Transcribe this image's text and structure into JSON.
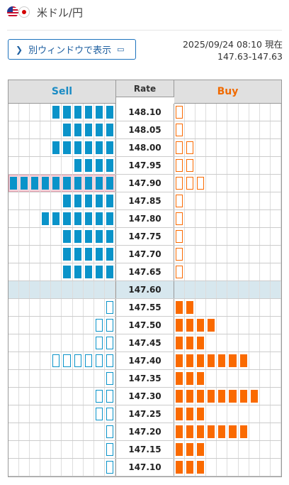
{
  "header": {
    "pair_label": "米ドル/円",
    "base_flag": "us-flag-icon",
    "quote_flag": "jp-flag-icon"
  },
  "window_button": {
    "label": "別ウィンドウで表示"
  },
  "timestamp": "2025/09/24 08:10 現在",
  "bid_ask": "147.63-147.63",
  "table": {
    "headers": {
      "sell": "Sell",
      "rate": "Rate",
      "buy": "Buy"
    },
    "colors": {
      "sell": "#0a93c9",
      "buy": "#fa6a00",
      "mid_row": "#d7e7ee",
      "highlight": "#f6d5dd"
    },
    "rows": [
      {
        "rate": "148.10",
        "sell": 6,
        "sell_style": "filled",
        "buy": 1,
        "buy_style": "outline"
      },
      {
        "rate": "148.05",
        "sell": 5,
        "sell_style": "filled",
        "buy": 1,
        "buy_style": "outline"
      },
      {
        "rate": "148.00",
        "sell": 6,
        "sell_style": "filled",
        "buy": 2,
        "buy_style": "outline"
      },
      {
        "rate": "147.95",
        "sell": 4,
        "sell_style": "filled",
        "buy": 2,
        "buy_style": "outline"
      },
      {
        "rate": "147.90",
        "sell": 10,
        "sell_style": "filled",
        "buy": 3,
        "buy_style": "outline",
        "highlight": true
      },
      {
        "rate": "147.85",
        "sell": 5,
        "sell_style": "filled",
        "buy": 1,
        "buy_style": "outline"
      },
      {
        "rate": "147.80",
        "sell": 7,
        "sell_style": "filled",
        "buy": 1,
        "buy_style": "outline"
      },
      {
        "rate": "147.75",
        "sell": 5,
        "sell_style": "filled",
        "buy": 1,
        "buy_style": "outline"
      },
      {
        "rate": "147.70",
        "sell": 5,
        "sell_style": "filled",
        "buy": 1,
        "buy_style": "outline"
      },
      {
        "rate": "147.65",
        "sell": 5,
        "sell_style": "filled",
        "buy": 1,
        "buy_style": "outline"
      },
      {
        "rate": "147.60",
        "sell": 0,
        "sell_style": "filled",
        "buy": 0,
        "buy_style": "filled",
        "mid": true
      },
      {
        "rate": "147.55",
        "sell": 1,
        "sell_style": "outline",
        "buy": 2,
        "buy_style": "filled"
      },
      {
        "rate": "147.50",
        "sell": 2,
        "sell_style": "outline",
        "buy": 4,
        "buy_style": "filled"
      },
      {
        "rate": "147.45",
        "sell": 2,
        "sell_style": "outline",
        "buy": 3,
        "buy_style": "filled"
      },
      {
        "rate": "147.40",
        "sell": 6,
        "sell_style": "outline",
        "buy": 7,
        "buy_style": "filled"
      },
      {
        "rate": "147.35",
        "sell": 1,
        "sell_style": "outline",
        "buy": 3,
        "buy_style": "filled"
      },
      {
        "rate": "147.30",
        "sell": 2,
        "sell_style": "outline",
        "buy": 8,
        "buy_style": "filled"
      },
      {
        "rate": "147.25",
        "sell": 2,
        "sell_style": "outline",
        "buy": 3,
        "buy_style": "filled"
      },
      {
        "rate": "147.20",
        "sell": 1,
        "sell_style": "outline",
        "buy": 7,
        "buy_style": "filled"
      },
      {
        "rate": "147.15",
        "sell": 1,
        "sell_style": "outline",
        "buy": 3,
        "buy_style": "filled"
      },
      {
        "rate": "147.10",
        "sell": 1,
        "sell_style": "outline",
        "buy": 3,
        "buy_style": "filled"
      }
    ]
  }
}
